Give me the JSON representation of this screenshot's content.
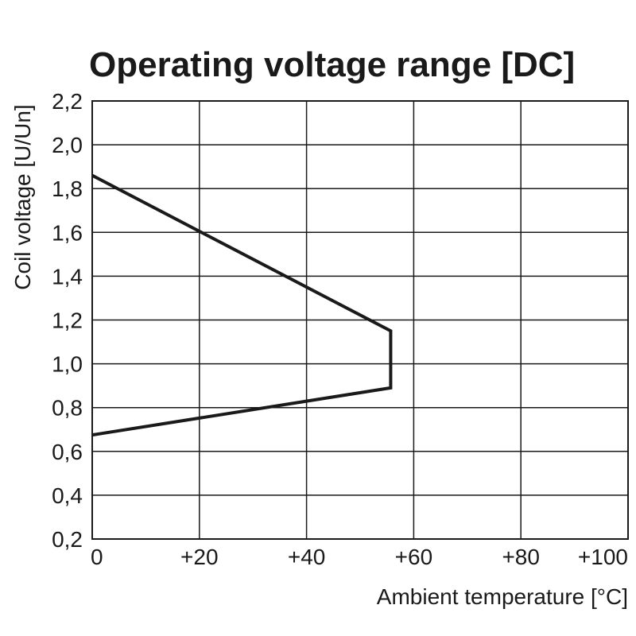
{
  "chart_data": {
    "type": "line",
    "title": "Operating voltage range [DC]",
    "xlabel": "Ambient temperature [°C]",
    "ylabel": "Coil voltage [U/Un]",
    "xlim": [
      0,
      100
    ],
    "ylim": [
      0.2,
      2.2
    ],
    "x_ticks": [
      0,
      20,
      40,
      60,
      80,
      100
    ],
    "x_tick_labels": [
      "0",
      "+20",
      "+40",
      "+60",
      "+80",
      "+100"
    ],
    "y_ticks": [
      0.2,
      0.4,
      0.6,
      0.8,
      1.0,
      1.2,
      1.4,
      1.6,
      1.8,
      2.0,
      2.2
    ],
    "y_tick_labels": [
      "0,2",
      "0,4",
      "0,6",
      "0,8",
      "1,0",
      "1,2",
      "1,4",
      "1,6",
      "1,8",
      "2,0",
      "2,2"
    ],
    "grid": true,
    "series": [
      {
        "x": [
          0,
          55.7,
          55.7,
          0
        ],
        "y": [
          1.86,
          1.15,
          0.89,
          0.675
        ]
      }
    ],
    "colors": {
      "line": "#1a1a1a",
      "grid": "#1a1a1a"
    }
  }
}
